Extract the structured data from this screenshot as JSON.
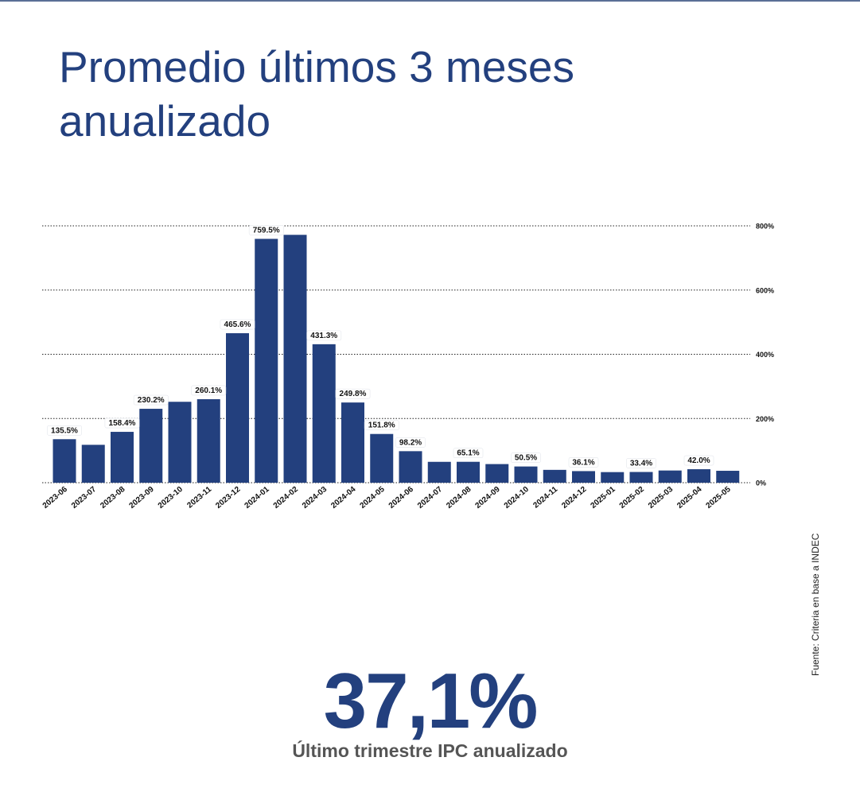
{
  "title": "Promedio últimos 3 meses anualizado",
  "source": "Fuente: Criteria en base a INDEC",
  "kpi": {
    "value": "37,1%",
    "label": "Último trimestre IPC anualizado"
  },
  "colors": {
    "bar": "#23407e",
    "title": "#23407e",
    "grid": "#222222",
    "text": "#111111"
  },
  "chart_data": {
    "type": "bar",
    "categories": [
      "2023-06",
      "2023-07",
      "2023-08",
      "2023-09",
      "2023-10",
      "2023-11",
      "2023-12",
      "2024-01",
      "2024-02",
      "2024-03",
      "2024-04",
      "2024-05",
      "2024-06",
      "2024-07",
      "2024-08",
      "2024-09",
      "2024-10",
      "2024-11",
      "2024-12",
      "2025-01",
      "2025-02",
      "2025-03",
      "2025-04",
      "2025-05"
    ],
    "values": [
      135.5,
      118,
      158.4,
      230.2,
      252,
      260.1,
      465.6,
      759.5,
      772,
      431.3,
      249.8,
      151.8,
      98.2,
      65,
      65.1,
      58,
      50.5,
      40,
      36.1,
      33,
      33.4,
      38,
      42.0,
      37.1
    ],
    "data_labels": [
      "135.5%",
      "",
      "158.4%",
      "230.2%",
      "",
      "260.1%",
      "465.6%",
      "759.5%",
      "",
      "431.3%",
      "249.8%",
      "151.8%",
      "98.2%",
      "",
      "65.1%",
      "",
      "50.5%",
      "",
      "36.1%",
      "",
      "33.4%",
      "",
      "42.0%",
      ""
    ],
    "yticks": [
      0,
      200,
      400,
      600,
      800
    ],
    "ytick_labels": [
      "0%",
      "200%",
      "400%",
      "600%",
      "800%"
    ],
    "ylim": [
      0,
      800
    ],
    "y_axis_side": "right",
    "grid": true,
    "legend": "none",
    "title": "",
    "xlabel": "",
    "ylabel": ""
  }
}
